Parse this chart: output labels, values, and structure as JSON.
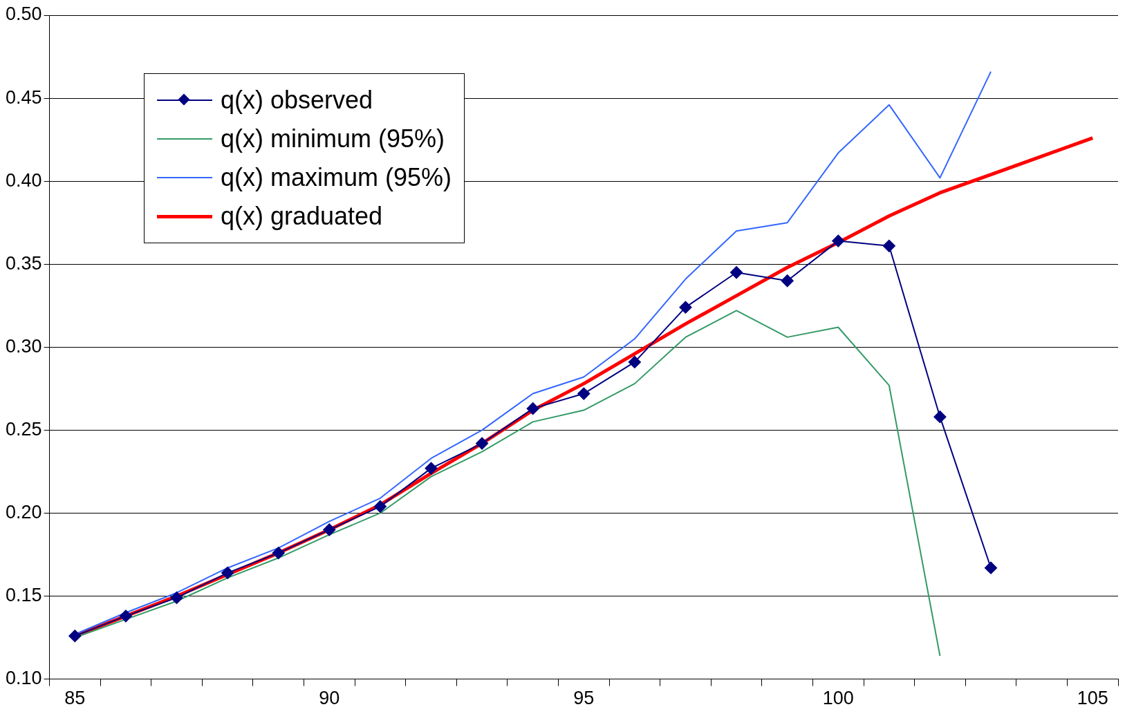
{
  "chart_data": {
    "type": "line",
    "categories": [
      "85",
      null,
      null,
      null,
      null,
      "90",
      null,
      null,
      null,
      null,
      "95",
      null,
      null,
      null,
      null,
      "100",
      null,
      null,
      null,
      null,
      "105"
    ],
    "ylim": [
      0.1,
      0.5
    ],
    "yticks": [
      {
        "value": 0.1,
        "label": "0.10"
      },
      {
        "value": 0.15,
        "label": "0.15"
      },
      {
        "value": 0.2,
        "label": "0.20"
      },
      {
        "value": 0.25,
        "label": "0.25"
      },
      {
        "value": 0.3,
        "label": "0.30"
      },
      {
        "value": 0.35,
        "label": "0.35"
      },
      {
        "value": 0.4,
        "label": "0.40"
      },
      {
        "value": 0.45,
        "label": "0.45"
      },
      {
        "value": 0.5,
        "label": "0.50"
      }
    ],
    "grid": "y",
    "legend": "top left",
    "series": [
      {
        "name": "q(x) observed",
        "color": "#000080",
        "marker": "diamond",
        "values": [
          0.126,
          0.138,
          0.149,
          0.164,
          0.176,
          0.19,
          0.204,
          0.227,
          0.242,
          0.263,
          0.272,
          0.291,
          0.324,
          0.345,
          0.34,
          0.364,
          0.361,
          0.258,
          0.167,
          null,
          null
        ]
      },
      {
        "name": "q(x) minimum (95%)",
        "color": "#339966",
        "marker": "none",
        "values": [
          0.125,
          0.136,
          0.147,
          0.161,
          0.173,
          0.187,
          0.2,
          0.222,
          0.237,
          0.255,
          0.262,
          0.278,
          0.306,
          0.322,
          0.306,
          0.312,
          0.277,
          0.114,
          null,
          null,
          null
        ]
      },
      {
        "name": "q(x) maximum (95%)",
        "color": "#3366ff",
        "marker": "none",
        "values": [
          0.127,
          0.14,
          0.152,
          0.167,
          0.179,
          0.195,
          0.209,
          0.233,
          0.25,
          0.272,
          0.282,
          0.305,
          0.341,
          0.37,
          0.375,
          0.417,
          0.446,
          0.402,
          0.466,
          null,
          null
        ]
      },
      {
        "name": "q(x) graduated",
        "color": "#ff0000",
        "marker": "none",
        "values": [
          0.126,
          0.138,
          0.15,
          0.163,
          0.176,
          0.19,
          0.205,
          0.224,
          0.242,
          0.262,
          0.278,
          0.296,
          0.314,
          0.331,
          0.348,
          0.363,
          0.379,
          0.393,
          0.404,
          0.415,
          0.426
        ]
      }
    ]
  }
}
